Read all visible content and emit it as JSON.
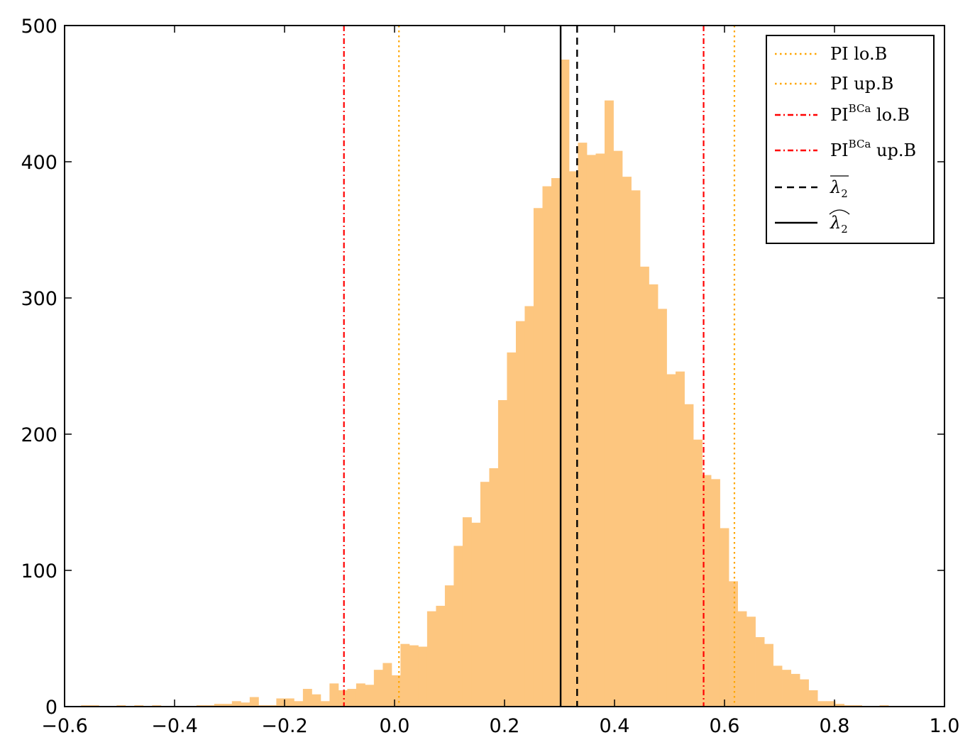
{
  "chart_data": {
    "type": "bar",
    "xlim": [
      -0.6,
      1.0
    ],
    "ylim": [
      0,
      500
    ],
    "xticks": [
      -0.6,
      -0.4,
      -0.2,
      0.0,
      0.2,
      0.4,
      0.6,
      0.8,
      1.0
    ],
    "xtick_labels": [
      "−0.6",
      "−0.4",
      "−0.2",
      "0.0",
      "0.2",
      "0.4",
      "0.6",
      "0.8",
      "1.0"
    ],
    "yticks": [
      0,
      100,
      200,
      300,
      400,
      500
    ],
    "ytick_labels": [
      "0",
      "100",
      "200",
      "300",
      "400",
      "500"
    ],
    "grid": false,
    "legend_position": "top-right",
    "histogram": {
      "bin_width": 0.01614,
      "color": "#FDC67F",
      "bins": [
        {
          "x0": -0.57,
          "count": 1
        },
        {
          "x0": -0.5538,
          "count": 1
        },
        {
          "x0": -0.5377,
          "count": 0
        },
        {
          "x0": -0.5216,
          "count": 0
        },
        {
          "x0": -0.5054,
          "count": 1
        },
        {
          "x0": -0.4893,
          "count": 0
        },
        {
          "x0": -0.4732,
          "count": 1
        },
        {
          "x0": -0.457,
          "count": 0
        },
        {
          "x0": -0.4409,
          "count": 1
        },
        {
          "x0": -0.4248,
          "count": 0
        },
        {
          "x0": -0.4086,
          "count": 0
        },
        {
          "x0": -0.3925,
          "count": 0
        },
        {
          "x0": -0.3764,
          "count": 0
        },
        {
          "x0": -0.3602,
          "count": 1
        },
        {
          "x0": -0.3441,
          "count": 1
        },
        {
          "x0": -0.328,
          "count": 2
        },
        {
          "x0": -0.3118,
          "count": 2
        },
        {
          "x0": -0.2957,
          "count": 4
        },
        {
          "x0": -0.2796,
          "count": 3
        },
        {
          "x0": -0.2634,
          "count": 7
        },
        {
          "x0": -0.2473,
          "count": 1
        },
        {
          "x0": -0.2312,
          "count": 1
        },
        {
          "x0": -0.215,
          "count": 6
        },
        {
          "x0": -0.1989,
          "count": 6
        },
        {
          "x0": -0.1828,
          "count": 4
        },
        {
          "x0": -0.1666,
          "count": 13
        },
        {
          "x0": -0.1505,
          "count": 9
        },
        {
          "x0": -0.1344,
          "count": 4
        },
        {
          "x0": -0.1182,
          "count": 17
        },
        {
          "x0": -0.1021,
          "count": 12
        },
        {
          "x0": -0.086,
          "count": 13
        },
        {
          "x0": -0.0698,
          "count": 17
        },
        {
          "x0": -0.0537,
          "count": 16
        },
        {
          "x0": -0.0376,
          "count": 27
        },
        {
          "x0": -0.0214,
          "count": 32
        },
        {
          "x0": -0.0053,
          "count": 23
        },
        {
          "x0": 0.0108,
          "count": 46
        },
        {
          "x0": 0.027,
          "count": 45
        },
        {
          "x0": 0.0431,
          "count": 44
        },
        {
          "x0": 0.0592,
          "count": 70
        },
        {
          "x0": 0.0754,
          "count": 74
        },
        {
          "x0": 0.0915,
          "count": 89
        },
        {
          "x0": 0.1076,
          "count": 118
        },
        {
          "x0": 0.1238,
          "count": 139
        },
        {
          "x0": 0.1399,
          "count": 135
        },
        {
          "x0": 0.156,
          "count": 165
        },
        {
          "x0": 0.1722,
          "count": 175
        },
        {
          "x0": 0.1883,
          "count": 225
        },
        {
          "x0": 0.2044,
          "count": 260
        },
        {
          "x0": 0.2206,
          "count": 283
        },
        {
          "x0": 0.2367,
          "count": 294
        },
        {
          "x0": 0.2528,
          "count": 366
        },
        {
          "x0": 0.269,
          "count": 382
        },
        {
          "x0": 0.2851,
          "count": 388
        },
        {
          "x0": 0.3012,
          "count": 475
        },
        {
          "x0": 0.3174,
          "count": 393
        },
        {
          "x0": 0.3335,
          "count": 414
        },
        {
          "x0": 0.3496,
          "count": 405
        },
        {
          "x0": 0.3658,
          "count": 406
        },
        {
          "x0": 0.3819,
          "count": 445
        },
        {
          "x0": 0.398,
          "count": 408
        },
        {
          "x0": 0.4142,
          "count": 389
        },
        {
          "x0": 0.4303,
          "count": 379
        },
        {
          "x0": 0.4464,
          "count": 323
        },
        {
          "x0": 0.4626,
          "count": 310
        },
        {
          "x0": 0.4787,
          "count": 292
        },
        {
          "x0": 0.4948,
          "count": 244
        },
        {
          "x0": 0.511,
          "count": 246
        },
        {
          "x0": 0.5271,
          "count": 222
        },
        {
          "x0": 0.5432,
          "count": 196
        },
        {
          "x0": 0.5594,
          "count": 170
        },
        {
          "x0": 0.5755,
          "count": 167
        },
        {
          "x0": 0.5916,
          "count": 131
        },
        {
          "x0": 0.6078,
          "count": 92
        },
        {
          "x0": 0.6239,
          "count": 70
        },
        {
          "x0": 0.64,
          "count": 66
        },
        {
          "x0": 0.6562,
          "count": 51
        },
        {
          "x0": 0.6723,
          "count": 46
        },
        {
          "x0": 0.6884,
          "count": 30
        },
        {
          "x0": 0.7046,
          "count": 27
        },
        {
          "x0": 0.7207,
          "count": 24
        },
        {
          "x0": 0.7368,
          "count": 20
        },
        {
          "x0": 0.753,
          "count": 12
        },
        {
          "x0": 0.7691,
          "count": 4
        },
        {
          "x0": 0.7852,
          "count": 4
        },
        {
          "x0": 0.8014,
          "count": 2
        },
        {
          "x0": 0.8175,
          "count": 1
        },
        {
          "x0": 0.8336,
          "count": 1
        },
        {
          "x0": 0.8498,
          "count": 0
        },
        {
          "x0": 0.8659,
          "count": 0
        },
        {
          "x0": 0.882,
          "count": 1
        }
      ]
    },
    "vlines": [
      {
        "key": "pi-lo-b",
        "x": 0.008,
        "color": "#FFA500",
        "style": "dotted",
        "label": "PI lo.B"
      },
      {
        "key": "pi-up-b",
        "x": 0.618,
        "color": "#FFA500",
        "style": "dotted",
        "label": "PI up.B"
      },
      {
        "key": "pi-bca-lo-b",
        "x": -0.092,
        "color": "#FF0000",
        "style": "dashdot",
        "label_main": "PI",
        "label_sup": "BCa",
        "label_rest": " lo.B"
      },
      {
        "key": "pi-bca-up-b",
        "x": 0.562,
        "color": "#FF0000",
        "style": "dashdot",
        "label_main": "PI",
        "label_sup": "BCa",
        "label_rest": " up.B"
      },
      {
        "key": "lambda2-bar",
        "x": 0.332,
        "color": "#000000",
        "style": "dashed",
        "label_main": "λ",
        "label_sub": "2",
        "accent": "bar"
      },
      {
        "key": "lambda2-hat",
        "x": 0.302,
        "color": "#000000",
        "style": "solid",
        "label_main": "λ",
        "label_sub": "2",
        "accent": "hat"
      }
    ]
  }
}
